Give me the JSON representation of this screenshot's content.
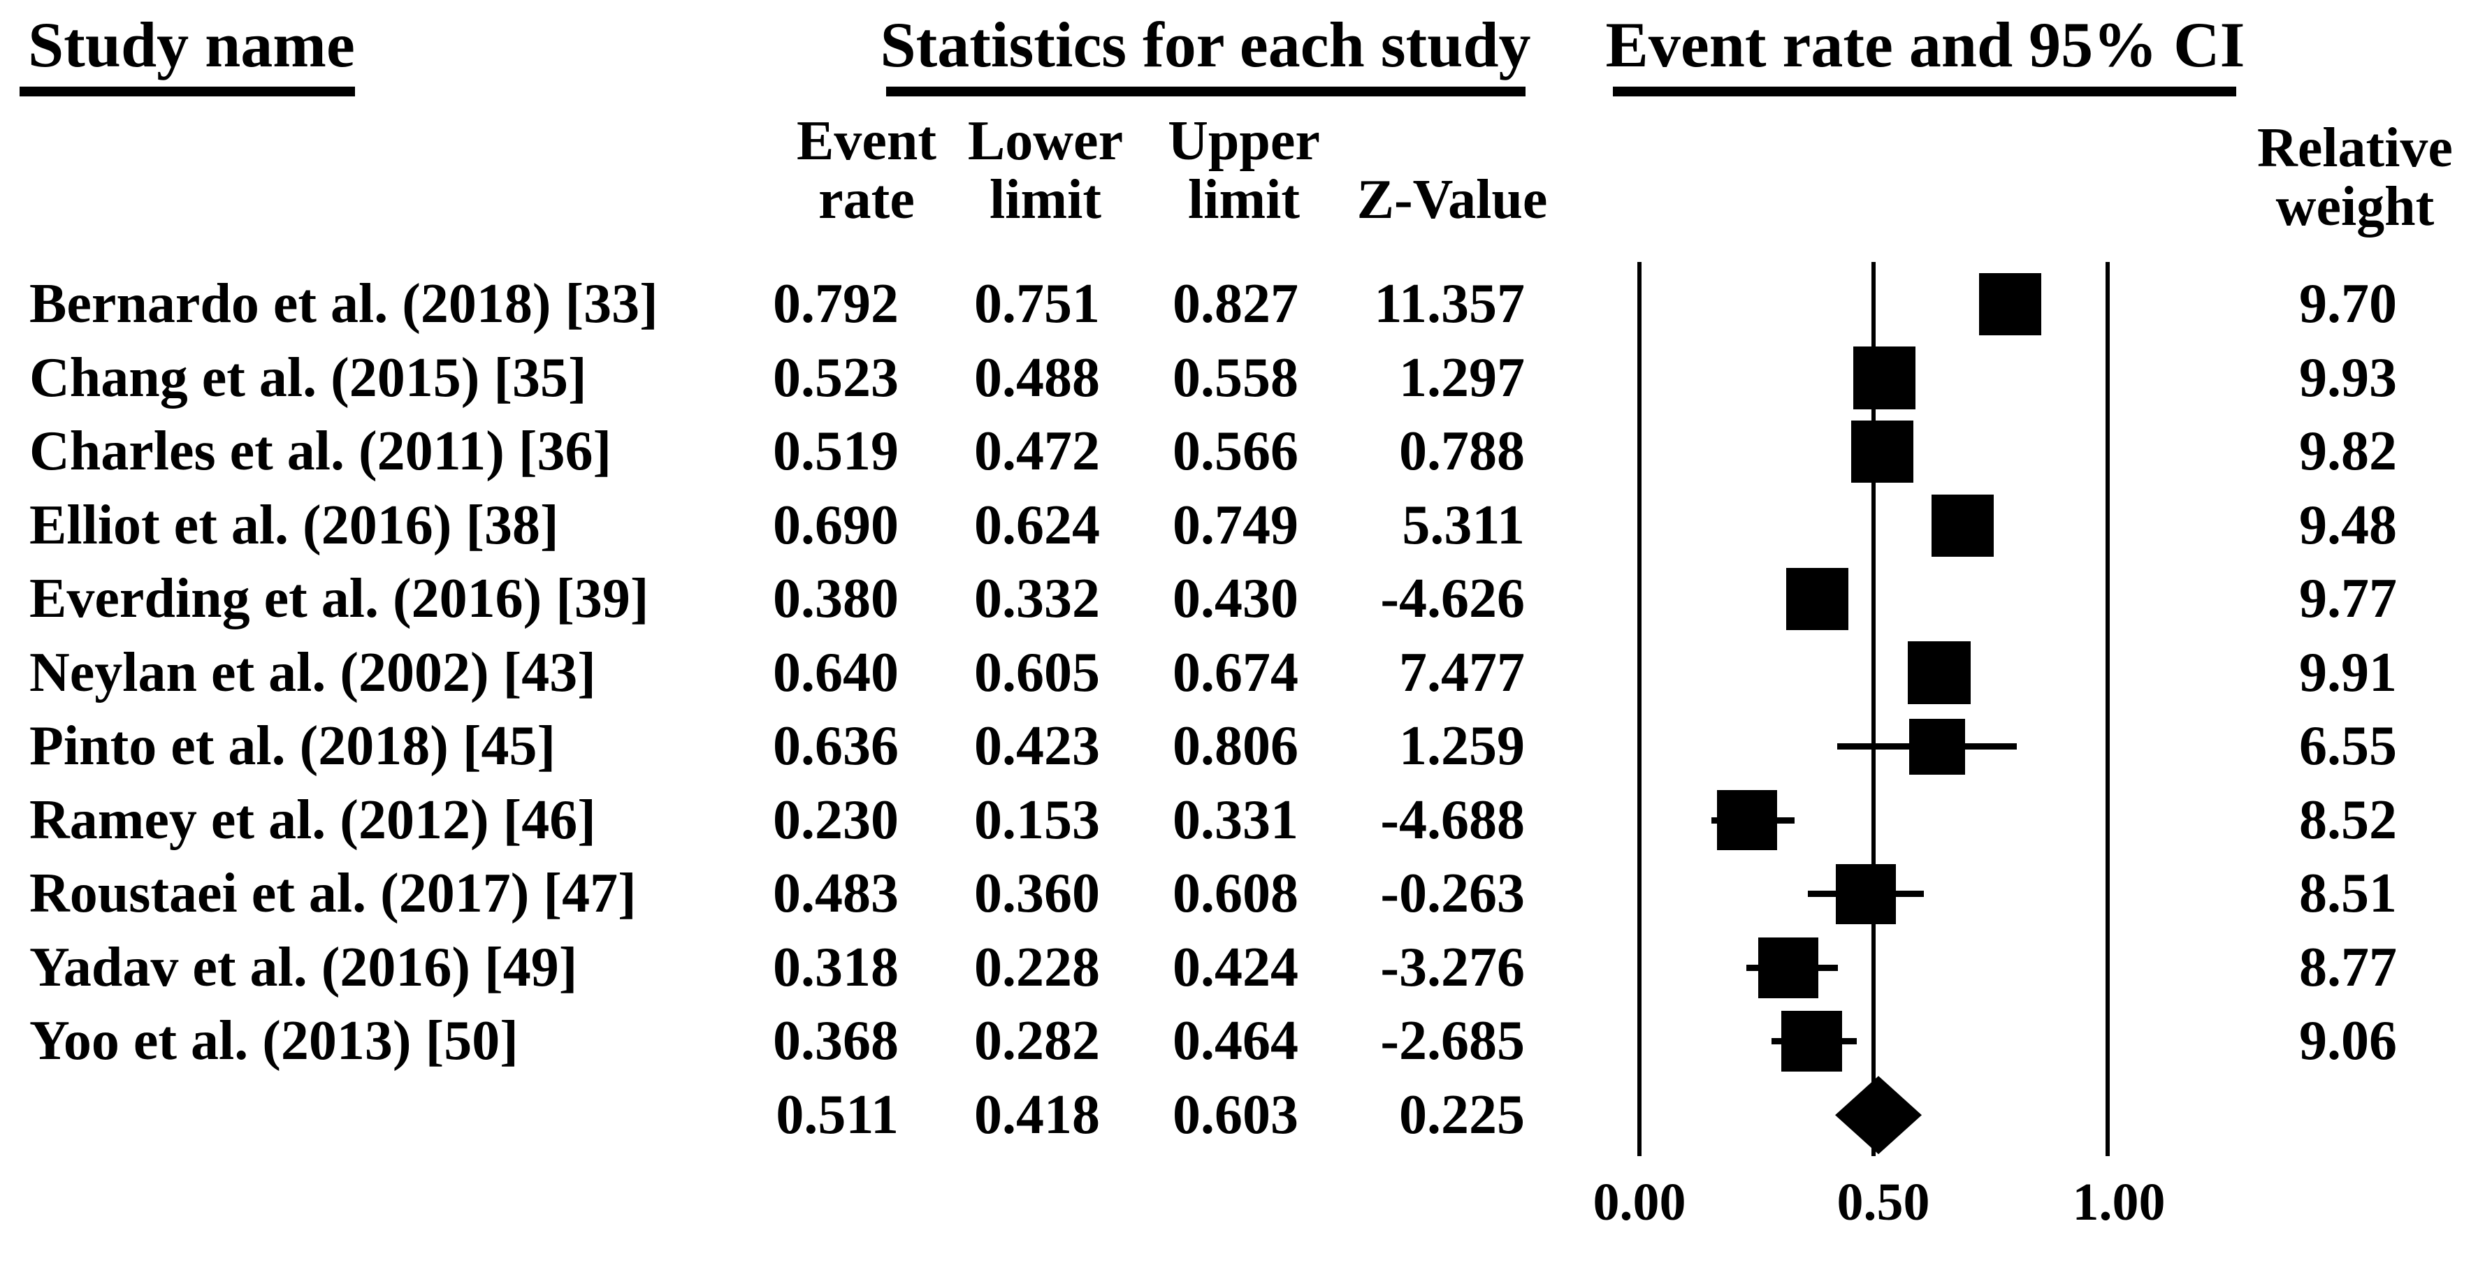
{
  "header": {
    "study_name": "Study name",
    "statistics": "Statistics for each study",
    "event_rate_ci": "Event rate and 95% CI"
  },
  "columns": {
    "event": {
      "line1": "Event",
      "line2": "rate"
    },
    "lower": {
      "line1": "Lower",
      "line2": "limit"
    },
    "upper": {
      "line1": "Upper",
      "line2": "limit"
    },
    "z": "Z-Value",
    "relative": {
      "line1": "Relative",
      "line2": "weight"
    }
  },
  "chart_data": {
    "type": "forest",
    "title": "Event rate and 95% CI",
    "xlim": [
      0,
      1
    ],
    "x_ticks": [
      0,
      0.5,
      1
    ],
    "x_tick_labels": [
      "0.00",
      "0.50",
      "1.00"
    ],
    "legend_position": "none",
    "grid": false,
    "marker_color": "#000000",
    "studies": [
      {
        "name": "Bernardo et al. (2018) [33]",
        "event_rate": 0.792,
        "lower": 0.751,
        "upper": 0.827,
        "z": 11.357,
        "weight": 9.7
      },
      {
        "name": "Chang et al. (2015) [35]",
        "event_rate": 0.523,
        "lower": 0.488,
        "upper": 0.558,
        "z": 1.297,
        "weight": 9.93
      },
      {
        "name": "Charles et al. (2011) [36]",
        "event_rate": 0.519,
        "lower": 0.472,
        "upper": 0.566,
        "z": 0.788,
        "weight": 9.82
      },
      {
        "name": "Elliot et al. (2016) [38]",
        "event_rate": 0.69,
        "lower": 0.624,
        "upper": 0.749,
        "z": 5.311,
        "weight": 9.48
      },
      {
        "name": "Everding et al. (2016) [39]",
        "event_rate": 0.38,
        "lower": 0.332,
        "upper": 0.43,
        "z": -4.626,
        "weight": 9.77
      },
      {
        "name": "Neylan et al. (2002) [43]",
        "event_rate": 0.64,
        "lower": 0.605,
        "upper": 0.674,
        "z": 7.477,
        "weight": 9.91
      },
      {
        "name": "Pinto et al. (2018) [45]",
        "event_rate": 0.636,
        "lower": 0.423,
        "upper": 0.806,
        "z": 1.259,
        "weight": 6.55
      },
      {
        "name": "Ramey et al. (2012) [46]",
        "event_rate": 0.23,
        "lower": 0.153,
        "upper": 0.331,
        "z": -4.688,
        "weight": 8.52
      },
      {
        "name": "Roustaei et al. (2017) [47]",
        "event_rate": 0.483,
        "lower": 0.36,
        "upper": 0.608,
        "z": -0.263,
        "weight": 8.51
      },
      {
        "name": "Yadav et al. (2016) [49]",
        "event_rate": 0.318,
        "lower": 0.228,
        "upper": 0.424,
        "z": -3.276,
        "weight": 8.77
      },
      {
        "name": "Yoo et al. (2013) [50]",
        "event_rate": 0.368,
        "lower": 0.282,
        "upper": 0.464,
        "z": -2.685,
        "weight": 9.06
      }
    ],
    "summary": {
      "event_rate": 0.511,
      "lower": 0.418,
      "upper": 0.603,
      "z": 0.225
    }
  }
}
